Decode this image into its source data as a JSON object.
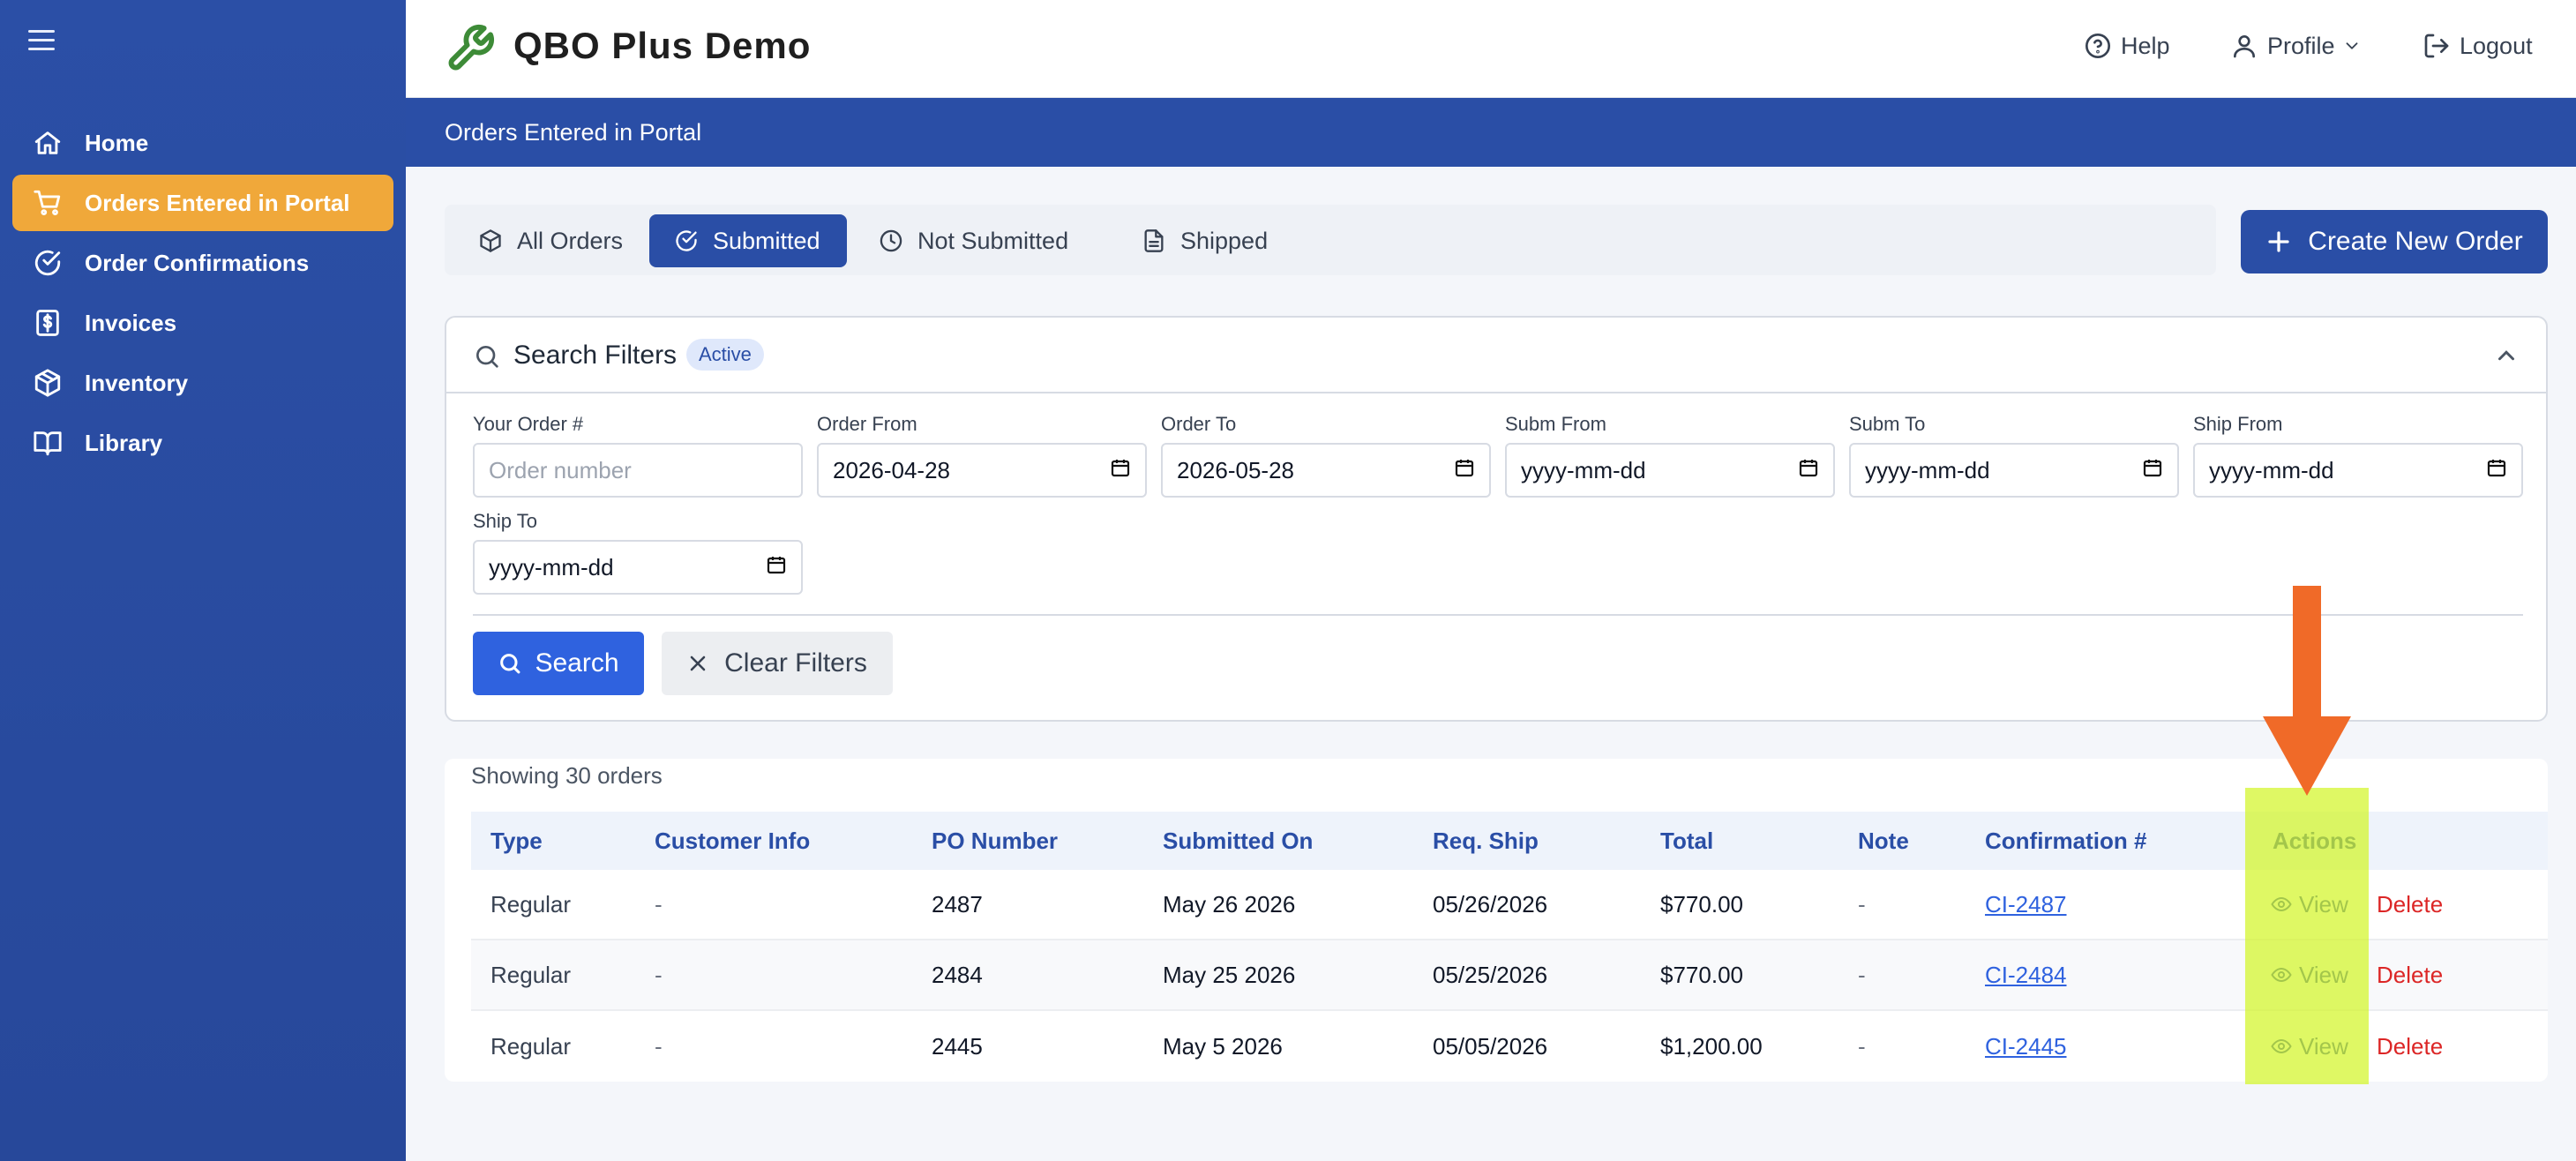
{
  "app": {
    "title": "QBO Plus Demo"
  },
  "header": {
    "help": "Help",
    "profile": "Profile",
    "logout": "Logout"
  },
  "sidebar": {
    "items": [
      {
        "label": "Home",
        "icon": "home-icon"
      },
      {
        "label": "Orders Entered in Portal",
        "icon": "cart-icon",
        "active": true
      },
      {
        "label": "Order Confirmations",
        "icon": "check-circle-icon"
      },
      {
        "label": "Invoices",
        "icon": "dollar-icon"
      },
      {
        "label": "Inventory",
        "icon": "box-icon"
      },
      {
        "label": "Library",
        "icon": "book-icon"
      }
    ]
  },
  "page": {
    "title": "Orders Entered in Portal"
  },
  "tabs": [
    {
      "label": "All Orders",
      "icon": "box-icon"
    },
    {
      "label": "Submitted",
      "icon": "check-circle-icon",
      "active": true
    },
    {
      "label": "Not Submitted",
      "icon": "clock-icon"
    },
    {
      "label": "Shipped",
      "icon": "document-icon"
    }
  ],
  "create_button": "Create New Order",
  "filters": {
    "title": "Search Filters",
    "badge": "Active",
    "fields": [
      {
        "label": "Your Order #",
        "value": "",
        "placeholder": "Order number"
      },
      {
        "label": "Order From",
        "value": "2026-04-28"
      },
      {
        "label": "Order To",
        "value": "2026-05-28"
      },
      {
        "label": "Subm From",
        "value": "yyyy-mm-dd"
      },
      {
        "label": "Subm To",
        "value": "yyyy-mm-dd"
      },
      {
        "label": "Ship From",
        "value": "yyyy-mm-dd"
      },
      {
        "label": "Ship To",
        "value": "yyyy-mm-dd"
      }
    ],
    "search_label": "Search",
    "clear_label": "Clear Filters"
  },
  "results": {
    "showing": "Showing 30 orders",
    "columns": [
      "Type",
      "Customer Info",
      "PO Number",
      "Submitted On",
      "Req. Ship",
      "Total",
      "Note",
      "Confirmation #",
      "Actions"
    ],
    "rows": [
      {
        "type": "Regular",
        "customer": "-",
        "po": "2487",
        "submitted": "May 26 2026",
        "req_ship": "05/26/2026",
        "total": "$770.00",
        "note": "-",
        "confirmation": "CI-2487",
        "view": "View",
        "delete": "Delete"
      },
      {
        "type": "Regular",
        "customer": "-",
        "po": "2484",
        "submitted": "May 25 2026",
        "req_ship": "05/25/2026",
        "total": "$770.00",
        "note": "-",
        "confirmation": "CI-2484",
        "view": "View",
        "delete": "Delete"
      },
      {
        "type": "Regular",
        "customer": "-",
        "po": "2445",
        "submitted": "May 5 2026",
        "req_ship": "05/05/2026",
        "total": "$1,200.00",
        "note": "-",
        "confirmation": "CI-2445",
        "view": "View",
        "delete": "Delete"
      }
    ]
  },
  "annotation": {
    "highlight_color": "#d2f528",
    "arrow_color": "#f06a28"
  }
}
